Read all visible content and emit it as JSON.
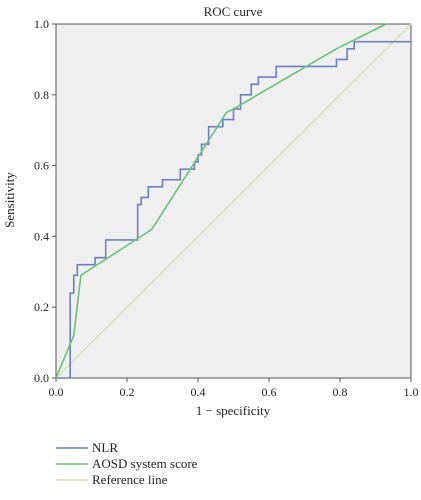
{
  "chart_data": {
    "type": "line",
    "title": "ROC curve",
    "xlabel": "1 − specificity",
    "ylabel": "Sensitivity",
    "xlim": [
      0,
      1
    ],
    "ylim": [
      0,
      1
    ],
    "xticks": [
      "0.0",
      "0.2",
      "0.4",
      "0.6",
      "0.8",
      "1.0"
    ],
    "yticks": [
      "0.0",
      "0.2",
      "0.4",
      "0.6",
      "0.8",
      "1.0"
    ],
    "grid": false,
    "background_color": "#efefef",
    "legend_position": "bottom-left",
    "series": [
      {
        "name": "NLR",
        "color": "#6e7fc0",
        "style": "step",
        "x": [
          0.0,
          0.04,
          0.04,
          0.05,
          0.05,
          0.06,
          0.06,
          0.11,
          0.11,
          0.14,
          0.14,
          0.23,
          0.23,
          0.24,
          0.24,
          0.26,
          0.26,
          0.3,
          0.3,
          0.35,
          0.35,
          0.39,
          0.39,
          0.4,
          0.4,
          0.41,
          0.41,
          0.43,
          0.43,
          0.47,
          0.47,
          0.5,
          0.5,
          0.52,
          0.52,
          0.55,
          0.55,
          0.57,
          0.57,
          0.62,
          0.62,
          0.79,
          0.79,
          0.82,
          0.82,
          0.84,
          0.84,
          0.88,
          0.88,
          1.0
        ],
        "y": [
          0.0,
          0.0,
          0.24,
          0.24,
          0.29,
          0.29,
          0.32,
          0.32,
          0.34,
          0.34,
          0.39,
          0.39,
          0.49,
          0.49,
          0.51,
          0.51,
          0.54,
          0.54,
          0.56,
          0.56,
          0.59,
          0.59,
          0.61,
          0.61,
          0.63,
          0.63,
          0.66,
          0.66,
          0.71,
          0.71,
          0.73,
          0.73,
          0.76,
          0.76,
          0.8,
          0.8,
          0.83,
          0.83,
          0.85,
          0.85,
          0.88,
          0.88,
          0.9,
          0.9,
          0.93,
          0.93,
          0.95,
          0.95,
          0.95,
          0.95
        ]
      },
      {
        "name": "AOSD system score",
        "color": "#6ac07a",
        "style": "line",
        "x": [
          0.0,
          0.05,
          0.07,
          0.27,
          0.48,
          0.5,
          0.79,
          0.93
        ],
        "y": [
          0.0,
          0.12,
          0.29,
          0.42,
          0.75,
          0.76,
          0.93,
          1.0
        ]
      },
      {
        "name": "Reference line",
        "color": "#dcdcb8",
        "style": "line",
        "x": [
          0.0,
          1.0
        ],
        "y": [
          0.0,
          1.0
        ]
      }
    ]
  }
}
